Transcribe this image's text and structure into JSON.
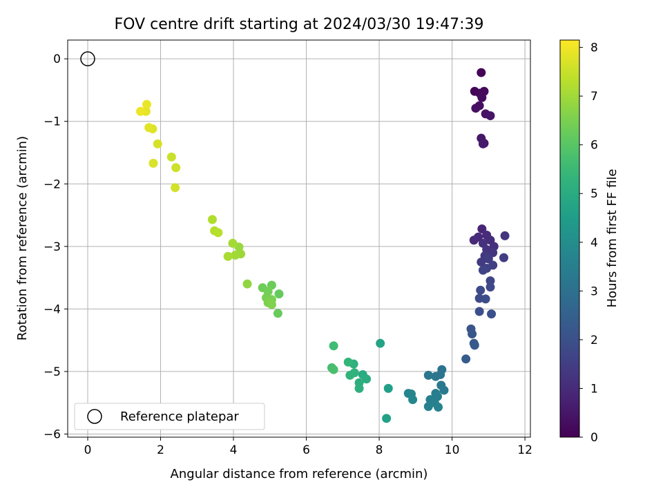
{
  "chart_data": {
    "type": "scatter",
    "title": "FOV centre drift starting at 2024/03/30 19:47:39",
    "xlabel": "Angular distance from reference (arcmin)",
    "ylabel": "Rotation from reference (arcmin)",
    "xlim": [
      -0.55,
      12.15
    ],
    "ylim": [
      -6.05,
      0.3
    ],
    "xticks": [
      "0",
      "2",
      "4",
      "6",
      "8",
      "10",
      "12"
    ],
    "xtick_values": [
      0,
      2,
      4,
      6,
      8,
      10,
      12
    ],
    "yticks": [
      "0",
      "−1",
      "−2",
      "−3",
      "−4",
      "−5",
      "−6"
    ],
    "ytick_values": [
      0,
      -1,
      -2,
      -3,
      -4,
      -5,
      -6
    ],
    "grid": true,
    "legend_position": "lower-left",
    "legend_label": "Reference platepar",
    "reference_point": {
      "x": 0,
      "y": 0
    },
    "colorbar": {
      "label": "Hours from first FF file",
      "min": 0,
      "max": 8.15,
      "ticks": [
        "0",
        "1",
        "2",
        "3",
        "4",
        "5",
        "6",
        "7",
        "8"
      ],
      "tick_values": [
        0,
        1,
        2,
        3,
        4,
        5,
        6,
        7,
        8
      ],
      "colormap": "viridis"
    },
    "points": [
      {
        "x": 10.8,
        "y": -0.22,
        "h": 0.05
      },
      {
        "x": 10.62,
        "y": -0.52,
        "h": 0.1
      },
      {
        "x": 10.76,
        "y": -0.55,
        "h": 0.15
      },
      {
        "x": 10.88,
        "y": -0.52,
        "h": 0.2
      },
      {
        "x": 10.82,
        "y": -0.62,
        "h": 0.25
      },
      {
        "x": 10.75,
        "y": -0.75,
        "h": 0.3
      },
      {
        "x": 10.65,
        "y": -0.79,
        "h": 0.35
      },
      {
        "x": 10.92,
        "y": -0.88,
        "h": 0.4
      },
      {
        "x": 11.05,
        "y": -0.91,
        "h": 0.45
      },
      {
        "x": 10.8,
        "y": -1.27,
        "h": 0.5
      },
      {
        "x": 10.88,
        "y": -1.35,
        "h": 0.55
      },
      {
        "x": 10.85,
        "y": -1.36,
        "h": 0.6
      },
      {
        "x": 10.82,
        "y": -2.72,
        "h": 0.85
      },
      {
        "x": 10.72,
        "y": -2.85,
        "h": 0.9
      },
      {
        "x": 10.6,
        "y": -2.9,
        "h": 0.95
      },
      {
        "x": 10.95,
        "y": -2.82,
        "h": 1.0
      },
      {
        "x": 11.05,
        "y": -2.9,
        "h": 1.05
      },
      {
        "x": 11.15,
        "y": -3.0,
        "h": 1.1
      },
      {
        "x": 10.85,
        "y": -2.95,
        "h": 1.15
      },
      {
        "x": 10.95,
        "y": -3.05,
        "h": 1.2
      },
      {
        "x": 11.45,
        "y": -2.83,
        "h": 1.25
      },
      {
        "x": 11.12,
        "y": -3.1,
        "h": 1.3
      },
      {
        "x": 10.9,
        "y": -3.15,
        "h": 1.35
      },
      {
        "x": 10.8,
        "y": -3.25,
        "h": 1.4
      },
      {
        "x": 11.0,
        "y": -3.2,
        "h": 1.45
      },
      {
        "x": 11.42,
        "y": -3.18,
        "h": 1.5
      },
      {
        "x": 11.12,
        "y": -3.3,
        "h": 1.55
      },
      {
        "x": 10.95,
        "y": -3.35,
        "h": 1.6
      },
      {
        "x": 10.85,
        "y": -3.38,
        "h": 1.65
      },
      {
        "x": 11.05,
        "y": -3.55,
        "h": 1.7
      },
      {
        "x": 11.05,
        "y": -3.65,
        "h": 1.75
      },
      {
        "x": 10.78,
        "y": -3.7,
        "h": 1.8
      },
      {
        "x": 10.75,
        "y": -3.83,
        "h": 1.85
      },
      {
        "x": 10.92,
        "y": -3.84,
        "h": 1.9
      },
      {
        "x": 10.75,
        "y": -4.04,
        "h": 1.95
      },
      {
        "x": 11.08,
        "y": -4.08,
        "h": 2.0
      },
      {
        "x": 10.52,
        "y": -4.32,
        "h": 2.15
      },
      {
        "x": 10.55,
        "y": -4.4,
        "h": 2.2
      },
      {
        "x": 10.6,
        "y": -4.55,
        "h": 2.25
      },
      {
        "x": 10.62,
        "y": -4.58,
        "h": 2.3
      },
      {
        "x": 10.38,
        "y": -4.8,
        "h": 2.35
      },
      {
        "x": 9.72,
        "y": -4.97,
        "h": 3.1
      },
      {
        "x": 9.68,
        "y": -5.05,
        "h": 3.15
      },
      {
        "x": 9.55,
        "y": -5.08,
        "h": 3.2
      },
      {
        "x": 9.35,
        "y": -5.06,
        "h": 3.25
      },
      {
        "x": 9.7,
        "y": -5.22,
        "h": 3.3
      },
      {
        "x": 9.78,
        "y": -5.3,
        "h": 3.35
      },
      {
        "x": 9.55,
        "y": -5.35,
        "h": 3.4
      },
      {
        "x": 9.6,
        "y": -5.4,
        "h": 3.45
      },
      {
        "x": 9.4,
        "y": -5.45,
        "h": 3.5
      },
      {
        "x": 9.52,
        "y": -5.5,
        "h": 3.55
      },
      {
        "x": 9.35,
        "y": -5.56,
        "h": 3.6
      },
      {
        "x": 9.62,
        "y": -5.57,
        "h": 3.65
      },
      {
        "x": 8.8,
        "y": -5.35,
        "h": 3.7
      },
      {
        "x": 8.88,
        "y": -5.36,
        "h": 3.75
      },
      {
        "x": 8.92,
        "y": -5.45,
        "h": 3.8
      },
      {
        "x": 8.25,
        "y": -5.27,
        "h": 4.6
      },
      {
        "x": 8.2,
        "y": -5.75,
        "h": 4.65
      },
      {
        "x": 8.03,
        "y": -4.55,
        "h": 4.75
      },
      {
        "x": 7.55,
        "y": -5.05,
        "h": 5.0
      },
      {
        "x": 7.65,
        "y": -5.12,
        "h": 5.05
      },
      {
        "x": 7.45,
        "y": -5.18,
        "h": 5.1
      },
      {
        "x": 7.45,
        "y": -5.27,
        "h": 5.15
      },
      {
        "x": 7.3,
        "y": -4.88,
        "h": 5.2
      },
      {
        "x": 7.32,
        "y": -5.02,
        "h": 5.25
      },
      {
        "x": 7.2,
        "y": -5.06,
        "h": 5.3
      },
      {
        "x": 7.15,
        "y": -4.85,
        "h": 5.35
      },
      {
        "x": 6.75,
        "y": -4.59,
        "h": 5.6
      },
      {
        "x": 6.7,
        "y": -4.94,
        "h": 5.7
      },
      {
        "x": 6.75,
        "y": -4.97,
        "h": 5.75
      },
      {
        "x": 5.25,
        "y": -3.76,
        "h": 6.2
      },
      {
        "x": 5.22,
        "y": -4.07,
        "h": 6.25
      },
      {
        "x": 5.05,
        "y": -3.62,
        "h": 6.3
      },
      {
        "x": 4.8,
        "y": -3.66,
        "h": 6.35
      },
      {
        "x": 4.95,
        "y": -3.72,
        "h": 6.4
      },
      {
        "x": 4.9,
        "y": -3.82,
        "h": 6.45
      },
      {
        "x": 5.05,
        "y": -3.85,
        "h": 6.5
      },
      {
        "x": 4.95,
        "y": -3.9,
        "h": 6.55
      },
      {
        "x": 5.05,
        "y": -3.93,
        "h": 6.6
      },
      {
        "x": 4.38,
        "y": -3.6,
        "h": 6.8
      },
      {
        "x": 4.15,
        "y": -3.01,
        "h": 6.9
      },
      {
        "x": 4.2,
        "y": -3.12,
        "h": 6.95
      },
      {
        "x": 4.05,
        "y": -3.14,
        "h": 7.0
      },
      {
        "x": 3.98,
        "y": -2.95,
        "h": 7.05
      },
      {
        "x": 3.85,
        "y": -3.16,
        "h": 7.1
      },
      {
        "x": 3.42,
        "y": -2.57,
        "h": 7.2
      },
      {
        "x": 3.48,
        "y": -2.75,
        "h": 7.25
      },
      {
        "x": 3.58,
        "y": -2.78,
        "h": 7.3
      },
      {
        "x": 2.3,
        "y": -1.57,
        "h": 7.5
      },
      {
        "x": 2.42,
        "y": -1.74,
        "h": 7.55
      },
      {
        "x": 2.4,
        "y": -2.06,
        "h": 7.6
      },
      {
        "x": 1.92,
        "y": -1.36,
        "h": 7.65
      },
      {
        "x": 1.8,
        "y": -1.67,
        "h": 7.7
      },
      {
        "x": 1.78,
        "y": -1.12,
        "h": 7.75
      },
      {
        "x": 1.68,
        "y": -1.1,
        "h": 7.8
      },
      {
        "x": 1.6,
        "y": -0.84,
        "h": 7.85
      },
      {
        "x": 1.62,
        "y": -0.73,
        "h": 7.9
      },
      {
        "x": 1.45,
        "y": -0.84,
        "h": 7.95
      }
    ]
  }
}
